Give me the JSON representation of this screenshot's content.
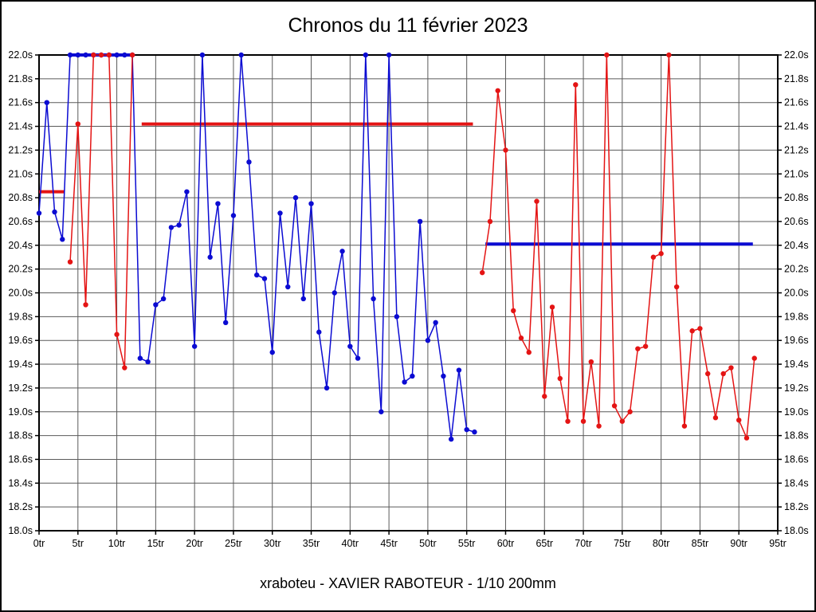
{
  "chart_data": {
    "type": "line",
    "title": "Chronos du 11 février 2023",
    "footer": "xraboteu - XAVIER RABOTEUR - 1/10 200mm",
    "xlim": [
      0,
      95
    ],
    "ylim": [
      18.0,
      22.0
    ],
    "grid": true,
    "x_ticks": [
      {
        "value": 0,
        "label": "0tr"
      },
      {
        "value": 5,
        "label": "5tr"
      },
      {
        "value": 10,
        "label": "10tr"
      },
      {
        "value": 15,
        "label": "15tr"
      },
      {
        "value": 20,
        "label": "20tr"
      },
      {
        "value": 25,
        "label": "25tr"
      },
      {
        "value": 30,
        "label": "30tr"
      },
      {
        "value": 35,
        "label": "35tr"
      },
      {
        "value": 40,
        "label": "40tr"
      },
      {
        "value": 45,
        "label": "45tr"
      },
      {
        "value": 50,
        "label": "50tr"
      },
      {
        "value": 55,
        "label": "55tr"
      },
      {
        "value": 60,
        "label": "60tr"
      },
      {
        "value": 65,
        "label": "65tr"
      },
      {
        "value": 70,
        "label": "70tr"
      },
      {
        "value": 75,
        "label": "75tr"
      },
      {
        "value": 80,
        "label": "80tr"
      },
      {
        "value": 85,
        "label": "85tr"
      },
      {
        "value": 90,
        "label": "90tr"
      },
      {
        "value": 95,
        "label": "95tr"
      }
    ],
    "y_ticks": [
      {
        "value": 22.0,
        "label": "22.0s"
      },
      {
        "value": 21.8,
        "label": "21.8s"
      },
      {
        "value": 21.6,
        "label": "21.6s"
      },
      {
        "value": 21.4,
        "label": "21.4s"
      },
      {
        "value": 21.2,
        "label": "21.2s"
      },
      {
        "value": 21.0,
        "label": "21.0s"
      },
      {
        "value": 20.8,
        "label": "20.8s"
      },
      {
        "value": 20.6,
        "label": "20.6s"
      },
      {
        "value": 20.4,
        "label": "20.4s"
      },
      {
        "value": 20.2,
        "label": "20.2s"
      },
      {
        "value": 20.0,
        "label": "20.0s"
      },
      {
        "value": 19.8,
        "label": "19.8s"
      },
      {
        "value": 19.6,
        "label": "19.6s"
      },
      {
        "value": 19.4,
        "label": "19.4s"
      },
      {
        "value": 19.2,
        "label": "19.2s"
      },
      {
        "value": 19.0,
        "label": "19.0s"
      },
      {
        "value": 18.8,
        "label": "18.8s"
      },
      {
        "value": 18.6,
        "label": "18.6s"
      },
      {
        "value": 18.4,
        "label": "18.4s"
      },
      {
        "value": 18.2,
        "label": "18.2s"
      },
      {
        "value": 18.0,
        "label": "18.0s"
      }
    ],
    "colors": {
      "blue": "#0b0bd2",
      "red": "#e41414",
      "grid": "#5a5a5a",
      "frame": "#000000"
    },
    "series": [
      {
        "name": "run-blue",
        "color_key": "blue",
        "x": [
          0,
          1,
          2,
          3,
          4,
          5,
          6,
          7,
          8,
          9,
          10,
          11,
          12,
          13,
          14,
          15,
          16,
          17,
          18,
          19,
          20,
          21,
          22,
          23,
          24,
          25,
          26,
          27,
          28,
          29,
          30,
          31,
          32,
          33,
          34,
          35,
          36,
          37,
          38,
          39,
          40,
          41,
          42,
          43,
          44,
          45,
          46,
          47,
          48,
          49,
          50,
          51,
          52,
          53,
          54,
          55,
          56
        ],
        "y": [
          20.67,
          21.6,
          20.68,
          20.45,
          22.0,
          22.0,
          22.0,
          22.0,
          22.0,
          22.0,
          22.0,
          22.0,
          22.0,
          19.45,
          19.42,
          19.9,
          19.95,
          20.55,
          20.57,
          20.85,
          19.55,
          22.0,
          20.3,
          20.75,
          19.75,
          20.65,
          22.0,
          21.1,
          20.15,
          20.12,
          19.5,
          20.67,
          20.05,
          20.8,
          19.95,
          20.75,
          19.67,
          19.2,
          20.0,
          20.35,
          19.55,
          19.45,
          22.0,
          19.95,
          19.0,
          22.0,
          19.8,
          19.25,
          19.3,
          20.6,
          19.6,
          19.75,
          19.3,
          18.77,
          19.35,
          18.85,
          18.83
        ]
      },
      {
        "name": "run-red-first",
        "color_key": "red",
        "x": [
          4,
          5,
          6,
          7,
          8,
          9,
          10,
          11,
          12
        ],
        "y": [
          20.26,
          21.42,
          19.9,
          22.0,
          22.0,
          22.0,
          19.65,
          19.37,
          22.0
        ]
      },
      {
        "name": "run-red-second",
        "color_key": "red",
        "x": [
          57,
          58,
          59,
          60,
          61,
          62,
          63,
          64,
          65,
          66,
          67,
          68,
          69,
          70,
          71,
          72,
          73,
          74,
          75,
          76,
          77,
          78,
          79,
          80,
          81,
          82,
          83,
          84,
          85,
          86,
          87,
          88,
          89,
          90,
          91,
          92
        ],
        "y": [
          20.17,
          20.6,
          21.7,
          21.2,
          19.85,
          19.62,
          19.5,
          20.77,
          19.13,
          19.88,
          19.28,
          18.92,
          21.75,
          18.92,
          19.42,
          18.88,
          22.0,
          19.05,
          18.92,
          19.0,
          19.53,
          19.55,
          20.3,
          20.33,
          22.0,
          20.05,
          18.88,
          19.68,
          19.7,
          19.32,
          18.95,
          19.32,
          19.37,
          18.93,
          18.78,
          19.45
        ]
      }
    ],
    "average_lines": [
      {
        "name": "avg-red-short",
        "color_key": "red",
        "y": 20.85,
        "x0": 0.0,
        "x1": 3.3
      },
      {
        "name": "avg-blue-top",
        "color_key": "blue",
        "y": 22.0,
        "x0": 4.2,
        "x1": 11.8
      },
      {
        "name": "avg-red-long",
        "color_key": "red",
        "y": 21.42,
        "x0": 13.2,
        "x1": 55.8
      },
      {
        "name": "avg-blue-long",
        "color_key": "blue",
        "y": 20.41,
        "x0": 57.4,
        "x1": 91.8
      }
    ]
  }
}
